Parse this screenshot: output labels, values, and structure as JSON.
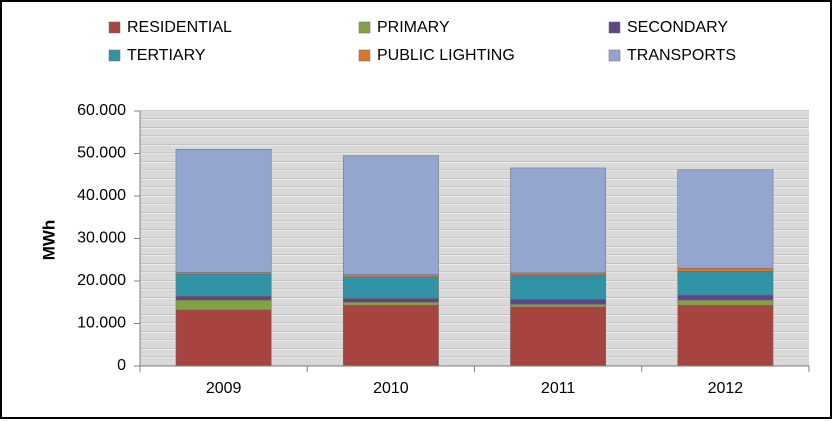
{
  "chart_data": {
    "type": "bar",
    "stacked": true,
    "categories": [
      "2009",
      "2010",
      "2011",
      "2012"
    ],
    "series": [
      {
        "name": "RESIDENTIAL",
        "color": "#a84440",
        "values": [
          13200,
          14300,
          13900,
          14300
        ]
      },
      {
        "name": "PRIMARY",
        "color": "#86a046",
        "values": [
          2300,
          700,
          600,
          1200
        ]
      },
      {
        "name": "SECONDARY",
        "color": "#5f4785",
        "values": [
          900,
          900,
          1200,
          1200
        ]
      },
      {
        "name": "TERTIARY",
        "color": "#3193a6",
        "values": [
          5200,
          5100,
          5700,
          5600
        ]
      },
      {
        "name": "PUBLIC LIGHTING",
        "color": "#d9772f",
        "values": [
          400,
          500,
          500,
          700
        ]
      },
      {
        "name": "TRANSPORTS",
        "color": "#92a6cf",
        "values": [
          29000,
          28000,
          24700,
          23200
        ]
      }
    ],
    "ylabel": "MWh",
    "xlabel": "",
    "title": "",
    "ylim": [
      0,
      60000
    ],
    "ytick_values": [
      0,
      10000,
      20000,
      30000,
      40000,
      50000,
      60000
    ],
    "ytick_labels": [
      "0",
      "10.000",
      "20.000",
      "30.000",
      "40.000",
      "50.000",
      "60.000"
    ],
    "grid": true,
    "legend_position": "top"
  }
}
